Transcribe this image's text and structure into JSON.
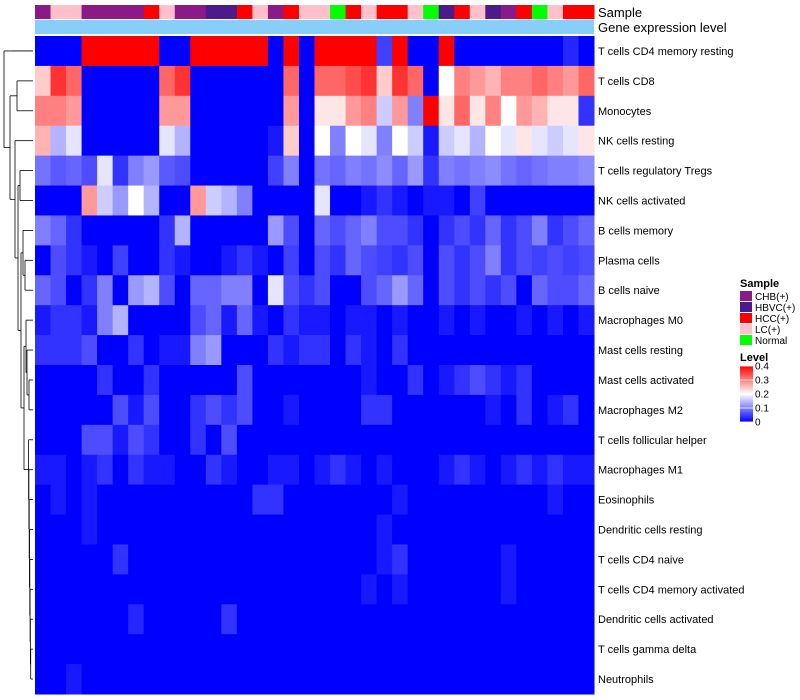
{
  "chart_data": {
    "type": "heatmap",
    "annotation_labels": [
      "Sample",
      "Gene expression level"
    ],
    "rows": [
      "T cells CD4 memory resting",
      "T cells CD8",
      "Monocytes",
      "NK cells resting",
      "T cells regulatory  Tregs",
      "NK cells activated",
      "B cells memory",
      "Plasma cells",
      "B cells naive",
      "Macrophages M0",
      "Mast cells resting",
      "Mast cells activated",
      "Macrophages M2",
      "T cells follicular helper",
      "Macrophages M1",
      "Eosinophils",
      "Dendritic cells resting",
      "T cells CD4 naive",
      "T cells CD4 memory activated",
      "Dendritic cells activated",
      "T cells gamma delta",
      "Neutrophils"
    ],
    "sample_groups": [
      "CHB",
      "LC",
      "LC",
      "CHB",
      "CHB",
      "CHB",
      "CHB",
      "HCC",
      "LC",
      "CHB",
      "CHB",
      "HBVC",
      "HBVC",
      "HCC",
      "LC",
      "CHB",
      "HCC",
      "LC",
      "LC",
      "Normal",
      "HCC",
      "LC",
      "HCC",
      "HCC",
      "LC",
      "Normal",
      "HBVC",
      "HCC",
      "LC",
      "HBVC",
      "CHB",
      "HCC",
      "Normal",
      "LC",
      "HCC",
      "HCC"
    ],
    "values": [
      [
        0.0,
        0.0,
        0.0,
        0.4,
        0.4,
        0.4,
        0.4,
        0.4,
        0.0,
        0.0,
        0.4,
        0.4,
        0.4,
        0.4,
        0.4,
        0.0,
        0.4,
        0.0,
        0.4,
        0.4,
        0.4,
        0.4,
        0.05,
        0.4,
        0.0,
        0.0,
        0.4,
        0.0,
        0.0,
        0.0,
        0.0,
        0.0,
        0.0,
        0.0,
        0.03,
        0.0
      ],
      [
        0.24,
        0.36,
        0.32,
        0.0,
        0.0,
        0.0,
        0.0,
        0.0,
        0.32,
        0.36,
        0.0,
        0.0,
        0.0,
        0.0,
        0.0,
        0.0,
        0.32,
        0.0,
        0.32,
        0.32,
        0.34,
        0.36,
        0.24,
        0.36,
        0.32,
        0.0,
        0.2,
        0.3,
        0.28,
        0.26,
        0.3,
        0.3,
        0.32,
        0.3,
        0.28,
        0.32
      ],
      [
        0.3,
        0.3,
        0.28,
        0.0,
        0.0,
        0.0,
        0.0,
        0.0,
        0.28,
        0.28,
        0.0,
        0.0,
        0.0,
        0.0,
        0.0,
        0.0,
        0.28,
        0.0,
        0.22,
        0.22,
        0.28,
        0.3,
        0.16,
        0.28,
        0.1,
        0.4,
        0.22,
        0.32,
        0.22,
        0.3,
        0.2,
        0.28,
        0.26,
        0.22,
        0.22,
        0.04
      ],
      [
        0.26,
        0.14,
        0.18,
        0.0,
        0.0,
        0.0,
        0.0,
        0.0,
        0.18,
        0.14,
        0.0,
        0.0,
        0.0,
        0.0,
        0.0,
        0.02,
        0.24,
        0.0,
        0.2,
        0.1,
        0.2,
        0.18,
        0.1,
        0.2,
        0.16,
        0.02,
        0.16,
        0.18,
        0.14,
        0.2,
        0.18,
        0.22,
        0.18,
        0.16,
        0.18,
        0.22
      ],
      [
        0.09,
        0.07,
        0.08,
        0.06,
        0.18,
        0.04,
        0.1,
        0.12,
        0.07,
        0.06,
        0.0,
        0.0,
        0.0,
        0.0,
        0.0,
        0.05,
        0.1,
        0.0,
        0.09,
        0.08,
        0.1,
        0.09,
        0.11,
        0.08,
        0.12,
        0.04,
        0.1,
        0.09,
        0.1,
        0.11,
        0.09,
        0.08,
        0.09,
        0.1,
        0.1,
        0.11
      ],
      [
        0.0,
        0.0,
        0.0,
        0.28,
        0.16,
        0.12,
        0.2,
        0.14,
        0.0,
        0.0,
        0.28,
        0.16,
        0.14,
        0.1,
        0.0,
        0.0,
        0.0,
        0.0,
        0.18,
        0.0,
        0.0,
        0.02,
        0.04,
        0.02,
        0.0,
        0.02,
        0.02,
        0.0,
        0.05,
        0.0,
        0.0,
        0.0,
        0.0,
        0.0,
        0.0,
        0.0
      ],
      [
        0.1,
        0.08,
        0.04,
        0.0,
        0.0,
        0.0,
        0.0,
        0.0,
        0.04,
        0.14,
        0.0,
        0.0,
        0.0,
        0.0,
        0.0,
        0.12,
        0.06,
        0.0,
        0.08,
        0.06,
        0.08,
        0.1,
        0.06,
        0.06,
        0.04,
        0.0,
        0.04,
        0.06,
        0.04,
        0.08,
        0.04,
        0.06,
        0.1,
        0.04,
        0.06,
        0.08
      ],
      [
        0.0,
        0.06,
        0.04,
        0.02,
        0.0,
        0.05,
        0.0,
        0.0,
        0.04,
        0.02,
        0.0,
        0.0,
        0.02,
        0.04,
        0.02,
        0.0,
        0.05,
        0.0,
        0.06,
        0.04,
        0.08,
        0.06,
        0.05,
        0.04,
        0.06,
        0.0,
        0.06,
        0.04,
        0.06,
        0.1,
        0.04,
        0.06,
        0.05,
        0.06,
        0.05,
        0.06
      ],
      [
        0.08,
        0.06,
        0.0,
        0.04,
        0.1,
        0.0,
        0.12,
        0.14,
        0.06,
        0.0,
        0.08,
        0.08,
        0.1,
        0.1,
        0.0,
        0.18,
        0.06,
        0.04,
        0.06,
        0.0,
        0.0,
        0.06,
        0.08,
        0.12,
        0.08,
        0.0,
        0.06,
        0.04,
        0.06,
        0.04,
        0.06,
        0.0,
        0.08,
        0.06,
        0.06,
        0.08
      ],
      [
        0.02,
        0.04,
        0.04,
        0.02,
        0.1,
        0.14,
        0.0,
        0.0,
        0.0,
        0.0,
        0.06,
        0.08,
        0.02,
        0.08,
        0.02,
        0.0,
        0.04,
        0.02,
        0.02,
        0.0,
        0.02,
        0.02,
        0.0,
        0.02,
        0.0,
        0.0,
        0.02,
        0.0,
        0.02,
        0.0,
        0.0,
        0.02,
        0.0,
        0.02,
        0.0,
        0.02
      ],
      [
        0.04,
        0.04,
        0.04,
        0.06,
        0.0,
        0.0,
        0.04,
        0.0,
        0.02,
        0.02,
        0.1,
        0.12,
        0.0,
        0.0,
        0.0,
        0.04,
        0.02,
        0.04,
        0.04,
        0.0,
        0.04,
        0.02,
        0.0,
        0.04,
        0.0,
        0.0,
        0.0,
        0.0,
        0.0,
        0.0,
        0.0,
        0.0,
        0.0,
        0.0,
        0.0,
        0.0
      ],
      [
        0.0,
        0.0,
        0.0,
        0.0,
        0.04,
        0.0,
        0.0,
        0.04,
        0.0,
        0.0,
        0.0,
        0.0,
        0.0,
        0.06,
        0.0,
        0.0,
        0.0,
        0.0,
        0.0,
        0.0,
        0.0,
        0.02,
        0.0,
        0.0,
        0.04,
        0.0,
        0.02,
        0.04,
        0.06,
        0.04,
        0.02,
        0.04,
        0.0,
        0.0,
        0.0,
        0.0
      ],
      [
        0.0,
        0.0,
        0.0,
        0.0,
        0.0,
        0.06,
        0.02,
        0.06,
        0.0,
        0.0,
        0.04,
        0.06,
        0.04,
        0.06,
        0.0,
        0.0,
        0.02,
        0.0,
        0.0,
        0.0,
        0.0,
        0.04,
        0.04,
        0.0,
        0.0,
        0.0,
        0.0,
        0.0,
        0.0,
        0.02,
        0.0,
        0.04,
        0.0,
        0.02,
        0.04,
        0.0
      ],
      [
        0.0,
        0.0,
        0.0,
        0.06,
        0.06,
        0.02,
        0.06,
        0.04,
        0.0,
        0.0,
        0.04,
        0.0,
        0.06,
        0.0,
        0.0,
        0.0,
        0.0,
        0.0,
        0.0,
        0.0,
        0.0,
        0.0,
        0.0,
        0.0,
        0.0,
        0.0,
        0.0,
        0.0,
        0.0,
        0.0,
        0.0,
        0.0,
        0.0,
        0.0,
        0.0,
        0.0
      ],
      [
        0.02,
        0.02,
        0.0,
        0.02,
        0.04,
        0.0,
        0.04,
        0.02,
        0.02,
        0.0,
        0.0,
        0.04,
        0.02,
        0.0,
        0.0,
        0.02,
        0.02,
        0.0,
        0.02,
        0.04,
        0.02,
        0.0,
        0.02,
        0.0,
        0.0,
        0.0,
        0.02,
        0.04,
        0.02,
        0.0,
        0.02,
        0.04,
        0.02,
        0.04,
        0.02,
        0.02
      ],
      [
        0.0,
        0.02,
        0.0,
        0.02,
        0.0,
        0.0,
        0.0,
        0.0,
        0.0,
        0.0,
        0.0,
        0.0,
        0.0,
        0.0,
        0.04,
        0.04,
        0.0,
        0.0,
        0.0,
        0.0,
        0.0,
        0.0,
        0.0,
        0.02,
        0.0,
        0.0,
        0.0,
        0.0,
        0.0,
        0.0,
        0.0,
        0.0,
        0.0,
        0.02,
        0.0,
        0.0
      ],
      [
        0.0,
        0.0,
        0.0,
        0.02,
        0.0,
        0.0,
        0.0,
        0.0,
        0.0,
        0.0,
        0.0,
        0.0,
        0.0,
        0.0,
        0.0,
        0.0,
        0.0,
        0.0,
        0.0,
        0.0,
        0.0,
        0.0,
        0.02,
        0.0,
        0.0,
        0.0,
        0.0,
        0.0,
        0.0,
        0.0,
        0.0,
        0.0,
        0.0,
        0.0,
        0.0,
        0.0
      ],
      [
        0.0,
        0.0,
        0.0,
        0.0,
        0.0,
        0.04,
        0.0,
        0.0,
        0.0,
        0.0,
        0.0,
        0.0,
        0.0,
        0.0,
        0.0,
        0.0,
        0.0,
        0.0,
        0.0,
        0.0,
        0.0,
        0.0,
        0.02,
        0.04,
        0.0,
        0.0,
        0.0,
        0.0,
        0.0,
        0.0,
        0.02,
        0.0,
        0.0,
        0.0,
        0.0,
        0.0
      ],
      [
        0.0,
        0.0,
        0.0,
        0.0,
        0.0,
        0.0,
        0.0,
        0.0,
        0.0,
        0.0,
        0.0,
        0.0,
        0.0,
        0.0,
        0.0,
        0.0,
        0.0,
        0.0,
        0.0,
        0.0,
        0.0,
        0.02,
        0.0,
        0.02,
        0.0,
        0.0,
        0.0,
        0.0,
        0.0,
        0.0,
        0.02,
        0.0,
        0.0,
        0.0,
        0.0,
        0.0
      ],
      [
        0.0,
        0.0,
        0.0,
        0.0,
        0.0,
        0.0,
        0.03,
        0.0,
        0.0,
        0.0,
        0.0,
        0.0,
        0.04,
        0.0,
        0.0,
        0.0,
        0.0,
        0.0,
        0.0,
        0.0,
        0.0,
        0.0,
        0.0,
        0.0,
        0.0,
        0.0,
        0.0,
        0.0,
        0.0,
        0.0,
        0.0,
        0.0,
        0.0,
        0.0,
        0.0,
        0.0
      ],
      [
        0.0,
        0.0,
        0.0,
        0.0,
        0.0,
        0.0,
        0.0,
        0.0,
        0.0,
        0.0,
        0.0,
        0.0,
        0.0,
        0.0,
        0.0,
        0.0,
        0.0,
        0.0,
        0.0,
        0.0,
        0.0,
        0.0,
        0.0,
        0.0,
        0.0,
        0.0,
        0.0,
        0.0,
        0.0,
        0.0,
        0.0,
        0.0,
        0.0,
        0.0,
        0.0,
        0.0
      ],
      [
        0.0,
        0.0,
        0.02,
        0.0,
        0.0,
        0.0,
        0.0,
        0.0,
        0.0,
        0.0,
        0.0,
        0.0,
        0.0,
        0.0,
        0.0,
        0.0,
        0.0,
        0.0,
        0.0,
        0.0,
        0.0,
        0.0,
        0.0,
        0.0,
        0.0,
        0.0,
        0.0,
        0.0,
        0.0,
        0.0,
        0.0,
        0.0,
        0.0,
        0.0,
        0.0,
        0.0
      ]
    ],
    "color_scale": {
      "min": 0,
      "mid": 0.2,
      "max": 0.4,
      "low_color": "#0000ff",
      "mid_color": "#ffffff",
      "high_color": "#ff0000"
    },
    "legend": {
      "sample_title": "Sample",
      "sample_entries": [
        {
          "key": "CHB",
          "label": "CHB(+)",
          "color": "#8b1a89"
        },
        {
          "key": "HBVC",
          "label": "HBVC(+)",
          "color": "#4b1a8b"
        },
        {
          "key": "HCC",
          "label": "HCC(+)",
          "color": "#ff0000"
        },
        {
          "key": "LC",
          "label": "LC(+)",
          "color": "#ffc0cb"
        },
        {
          "key": "Normal",
          "label": "Normal",
          "color": "#00ff00"
        }
      ],
      "level_title": "Level",
      "level_ticks": [
        0.4,
        0.3,
        0.2,
        0.1,
        0
      ]
    },
    "expression_bar_color": "#87cefa",
    "dendrogram": "rows"
  }
}
